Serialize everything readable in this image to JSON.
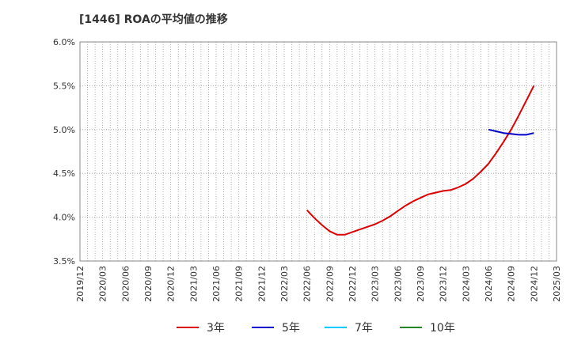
{
  "chart_data": {
    "type": "line",
    "title": "[1446]  ROAの平均値の推移",
    "xlabel": "",
    "ylabel": "",
    "ylim": [
      3.5,
      6.0
    ],
    "y_ticks": [
      "3.5%",
      "4.0%",
      "4.5%",
      "5.0%",
      "5.5%",
      "6.0%"
    ],
    "y_tick_values": [
      3.5,
      4.0,
      4.5,
      5.0,
      5.5,
      6.0
    ],
    "x_ticks": [
      "2019/12",
      "2020/03",
      "2020/06",
      "2020/09",
      "2020/12",
      "2021/03",
      "2021/06",
      "2021/09",
      "2021/12",
      "2022/03",
      "2022/06",
      "2022/09",
      "2022/12",
      "2023/03",
      "2023/06",
      "2023/09",
      "2023/12",
      "2024/03",
      "2024/06",
      "2024/09",
      "2024/12",
      "2025/03"
    ],
    "grid": "dotted",
    "legend_position": "bottom",
    "series": [
      {
        "name": "3年",
        "color": "#dd0000",
        "points": [
          [
            "2022/06",
            4.08
          ],
          [
            "2022/07",
            3.99
          ],
          [
            "2022/08",
            3.91
          ],
          [
            "2022/09",
            3.84
          ],
          [
            "2022/10",
            3.8
          ],
          [
            "2022/11",
            3.8
          ],
          [
            "2022/12",
            3.83
          ],
          [
            "2023/01",
            3.86
          ],
          [
            "2023/02",
            3.89
          ],
          [
            "2023/03",
            3.92
          ],
          [
            "2023/04",
            3.96
          ],
          [
            "2023/05",
            4.01
          ],
          [
            "2023/06",
            4.07
          ],
          [
            "2023/07",
            4.13
          ],
          [
            "2023/08",
            4.18
          ],
          [
            "2023/09",
            4.22
          ],
          [
            "2023/10",
            4.26
          ],
          [
            "2023/11",
            4.28
          ],
          [
            "2023/12",
            4.3
          ],
          [
            "2024/01",
            4.31
          ],
          [
            "2024/02",
            4.34
          ],
          [
            "2024/03",
            4.38
          ],
          [
            "2024/04",
            4.44
          ],
          [
            "2024/05",
            4.52
          ],
          [
            "2024/06",
            4.61
          ],
          [
            "2024/07",
            4.73
          ],
          [
            "2024/08",
            4.86
          ],
          [
            "2024/09",
            5.0
          ],
          [
            "2024/10",
            5.16
          ],
          [
            "2024/11",
            5.33
          ],
          [
            "2024/12",
            5.5
          ]
        ]
      },
      {
        "name": "5年",
        "color": "#0000cc",
        "points": [
          [
            "2024/06",
            5.0
          ],
          [
            "2024/07",
            4.98
          ],
          [
            "2024/08",
            4.96
          ],
          [
            "2024/09",
            4.95
          ],
          [
            "2024/10",
            4.94
          ],
          [
            "2024/11",
            4.94
          ],
          [
            "2024/12",
            4.96
          ]
        ]
      },
      {
        "name": "7年",
        "color": "#00ccff",
        "points": []
      },
      {
        "name": "10年",
        "color": "#228822",
        "points": []
      }
    ]
  }
}
